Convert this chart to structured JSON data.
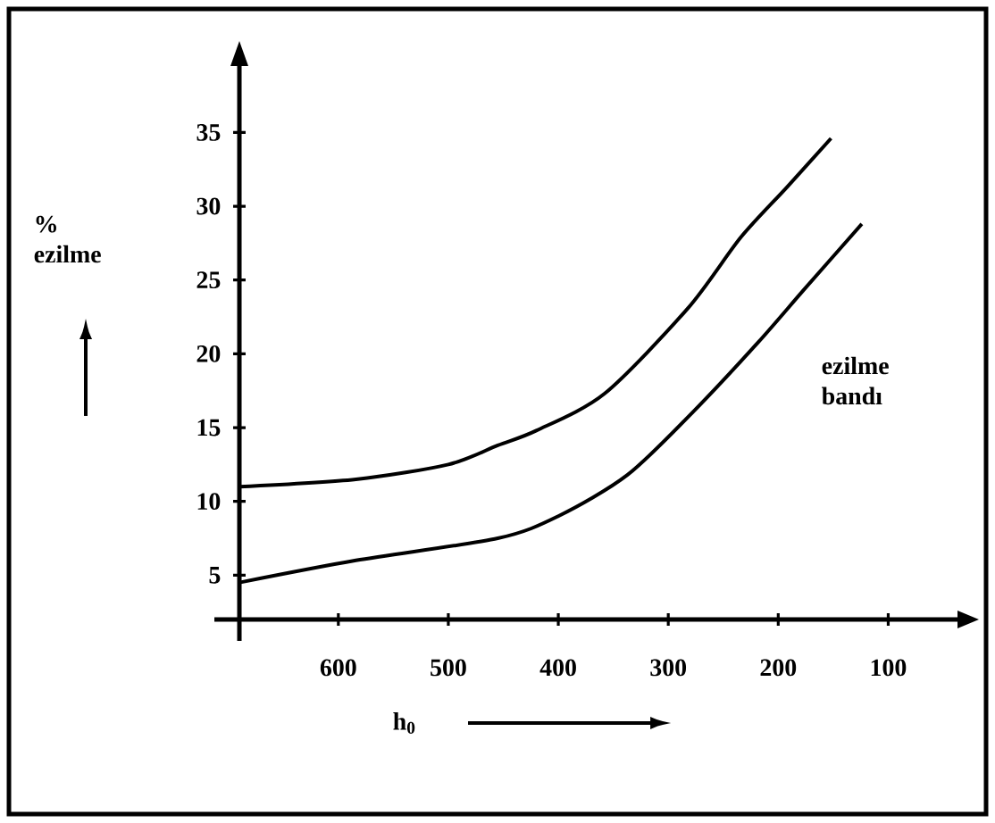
{
  "chart_data": {
    "type": "line",
    "xlabel": "h$_{0}$",
    "ylabel": "% ezilme",
    "xlim": [
      690,
      37
    ],
    "ylim": [
      2,
      39.5
    ],
    "xticks": [
      600,
      500,
      400,
      300,
      200,
      100
    ],
    "yticks": [
      5,
      10,
      15,
      20,
      25,
      30,
      35
    ],
    "series": [
      {
        "color": "#000000",
        "x": [
          690,
          584,
          500,
          455,
          420,
          358,
          282,
          234,
          192,
          152
        ],
        "values": [
          11,
          11.5,
          12.5,
          13.8,
          14.8,
          17.3,
          23.1,
          27.9,
          31.3,
          34.6
        ]
      },
      {
        "color": "#000000",
        "x": [
          690,
          584,
          455,
          400,
          337,
          277,
          218,
          176,
          124
        ],
        "values": [
          4.5,
          6.0,
          7.5,
          9.0,
          11.8,
          16.1,
          20.8,
          24.4,
          28.8
        ]
      }
    ],
    "annotations": [
      "ezilme bandı"
    ]
  }
}
